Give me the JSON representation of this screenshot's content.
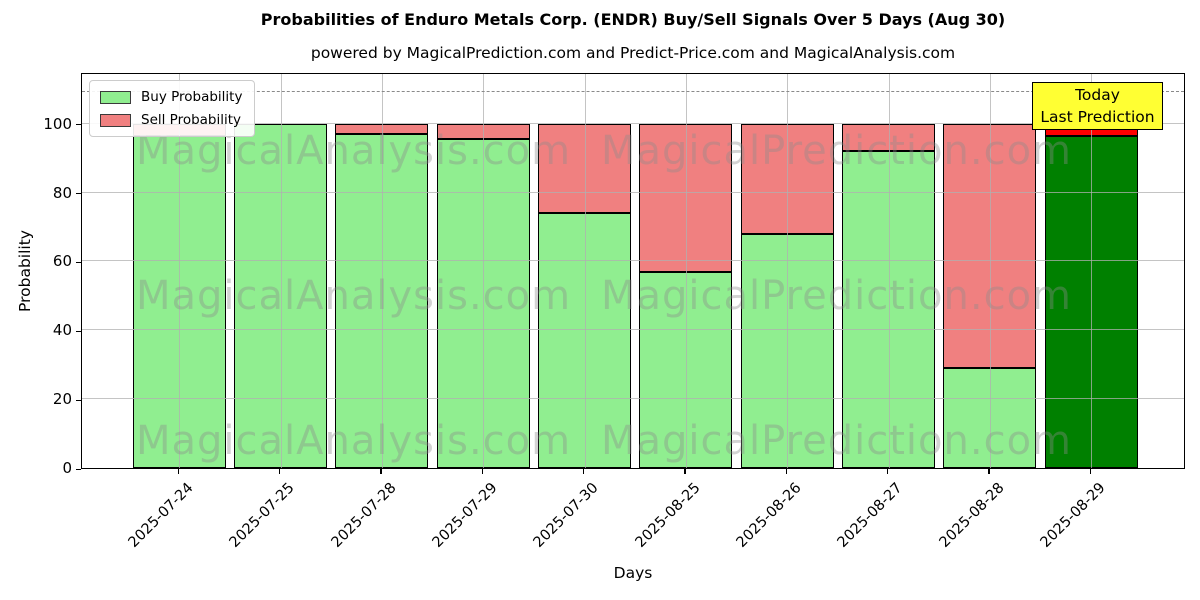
{
  "chart_data": {
    "type": "bar",
    "stacked": true,
    "title": "Probabilities of Enduro Metals Corp. (ENDR) Buy/Sell Signals Over 5 Days (Aug 30)",
    "subtitle": "powered by MagicalPrediction.com and Predict-Price.com and MagicalAnalysis.com",
    "xlabel": "Days",
    "ylabel": "Probability",
    "categories": [
      "2025-07-24",
      "2025-07-25",
      "2025-07-28",
      "2025-07-29",
      "2025-07-30",
      "2025-08-25",
      "2025-08-26",
      "2025-08-27",
      "2025-08-28",
      "2025-08-29"
    ],
    "series": [
      {
        "name": "Buy Probability",
        "color": "#90ee90",
        "values": [
          96.5,
          100,
          97,
          95.5,
          74,
          57,
          68,
          92,
          29,
          96.5
        ]
      },
      {
        "name": "Sell Probability",
        "color": "#f08080",
        "values": [
          3.5,
          0,
          3,
          4.5,
          26,
          43,
          32,
          8,
          71,
          3.5
        ]
      }
    ],
    "highlight_last_bar": {
      "buy_color": "#008000",
      "sell_color": "#ff0000"
    },
    "ylim": [
      0,
      115
    ],
    "yticks": [
      0,
      20,
      40,
      60,
      80,
      100
    ],
    "dashed_line_y": 110,
    "grid": true,
    "legend_position": "upper-left",
    "annotation": {
      "line1": "Today",
      "line2": "Last Prediction",
      "bg_color": "#ffff33"
    },
    "watermark_left": "MagicalAnalysis.com",
    "watermark_right": "MagicalPrediction.com",
    "colors": {
      "grid": "#b0b0b0",
      "dashed_line": "#8a8a8a",
      "watermark": "rgba(140,140,140,0.38)",
      "bar_edge": "#000000"
    }
  }
}
